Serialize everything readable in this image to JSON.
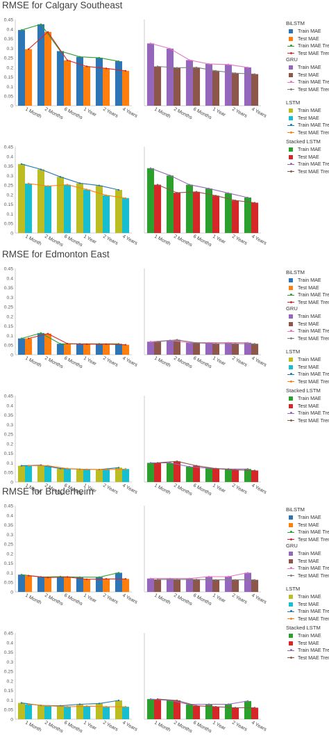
{
  "sections": [
    {
      "title": "RMSE for Calgary Southeast"
    },
    {
      "title": "RMSE for Edmonton East"
    },
    {
      "title": "RMSE for Bruderheim"
    }
  ],
  "legend": {
    "groups": [
      {
        "title": "BiLSTM",
        "items": [
          {
            "label": "Train MAE",
            "kind": "bar",
            "color": "#2e75b6"
          },
          {
            "label": "Test MAE",
            "kind": "bar",
            "color": "#ff7f0e"
          },
          {
            "label": "Train MAE Trenc",
            "kind": "line",
            "color": "#2ca02c"
          },
          {
            "label": "Test MAE Trend",
            "kind": "line",
            "color": "#d62728"
          }
        ]
      },
      {
        "title": "GRU",
        "items": [
          {
            "label": "Train MAE",
            "kind": "bar",
            "color": "#9467bd"
          },
          {
            "label": "Test MAE",
            "kind": "bar",
            "color": "#8c564b"
          },
          {
            "label": "Train MAE Trenc",
            "kind": "line",
            "color": "#e377c2"
          },
          {
            "label": "Test MAE Trend",
            "kind": "line",
            "color": "#7f7f7f"
          }
        ]
      },
      {
        "title": "LSTM",
        "items": [
          {
            "label": "Train MAE",
            "kind": "bar",
            "color": "#bcbd22"
          },
          {
            "label": "Test MAE",
            "kind": "bar",
            "color": "#17becf"
          },
          {
            "label": "Train MAE Trenc",
            "kind": "line",
            "color": "#1f77b4"
          },
          {
            "label": "Test MAE Trend",
            "kind": "line",
            "color": "#ff7f0e"
          }
        ]
      },
      {
        "title": "Stacked LSTM",
        "items": [
          {
            "label": "Train MAE",
            "kind": "bar",
            "color": "#2ca02c"
          },
          {
            "label": "Test MAE",
            "kind": "bar",
            "color": "#d62728"
          },
          {
            "label": "Train MAE Trenc",
            "kind": "line",
            "color": "#9467bd"
          },
          {
            "label": "Test MAE Trend",
            "kind": "line",
            "color": "#8c564b"
          }
        ]
      }
    ]
  },
  "chart_data": [
    {
      "type": "bar",
      "section": "Calgary Southeast",
      "model": "BiLSTM",
      "categories": [
        "1 Month",
        "2 Months",
        "6 Months",
        "1 Year",
        "2 Years",
        "4 Years"
      ],
      "ylim": [
        0,
        0.45
      ],
      "yticks": [
        "0",
        "0.05",
        "0.1",
        "0.15",
        "0.2",
        "0.25",
        "0.3",
        "0.35",
        "0.4",
        "0.45"
      ],
      "bar_colors": [
        "#2e75b6",
        "#ff7f0e"
      ],
      "line_colors": [
        "#2ca02c",
        "#d62728"
      ],
      "series": [
        {
          "name": "Train MAE",
          "values": [
            0.395,
            0.425,
            0.285,
            0.255,
            0.25,
            0.232
          ]
        },
        {
          "name": "Test MAE",
          "values": [
            0.295,
            0.385,
            0.237,
            0.205,
            0.195,
            0.182
          ]
        }
      ]
    },
    {
      "type": "bar",
      "section": "Calgary Southeast",
      "model": "GRU",
      "categories": [
        "1 Month",
        "2 Months",
        "6 Months",
        "1 Year",
        "2 Years",
        "4 Years"
      ],
      "ylim": [
        0,
        0.45
      ],
      "yticks": [],
      "bar_colors": [
        "#9467bd",
        "#8c564b"
      ],
      "line_colors": [
        "#e377c2",
        "#7f7f7f"
      ],
      "series": [
        {
          "name": "Train MAE",
          "values": [
            0.325,
            0.298,
            0.238,
            0.218,
            0.215,
            0.2
          ]
        },
        {
          "name": "Test MAE",
          "values": [
            0.205,
            0.198,
            0.2,
            0.182,
            0.17,
            0.165
          ]
        }
      ]
    },
    {
      "type": "bar",
      "section": "Calgary Southeast",
      "model": "LSTM",
      "categories": [
        "1 Month",
        "2 Months",
        "6 Months",
        "1 Year",
        "2 Years",
        "4 Years"
      ],
      "ylim": [
        0,
        0.45
      ],
      "yticks": [
        "0",
        "0.05",
        "0.1",
        "0.15",
        "0.2",
        "0.25",
        "0.3",
        "0.35",
        "0.4",
        "0.45"
      ],
      "bar_colors": [
        "#bcbd22",
        "#17becf"
      ],
      "line_colors": [
        "#1f77b4",
        "#ff7f0e"
      ],
      "series": [
        {
          "name": "Train MAE",
          "values": [
            0.36,
            0.332,
            0.293,
            0.26,
            0.248,
            0.225
          ]
        },
        {
          "name": "Test MAE",
          "values": [
            0.258,
            0.245,
            0.252,
            0.227,
            0.197,
            0.182
          ]
        }
      ]
    },
    {
      "type": "bar",
      "section": "Calgary Southeast",
      "model": "Stacked LSTM",
      "categories": [
        "1 Month",
        "2 Months",
        "6 Months",
        "1 Year",
        "2 Years",
        "4 Years"
      ],
      "ylim": [
        0,
        0.45
      ],
      "yticks": [],
      "bar_colors": [
        "#2ca02c",
        "#d62728"
      ],
      "line_colors": [
        "#9467bd",
        "#8c564b"
      ],
      "series": [
        {
          "name": "Train MAE",
          "values": [
            0.338,
            0.3,
            0.252,
            0.232,
            0.208,
            0.185
          ]
        },
        {
          "name": "Test MAE",
          "values": [
            0.252,
            0.21,
            0.215,
            0.195,
            0.17,
            0.158
          ]
        }
      ]
    },
    {
      "type": "bar",
      "section": "Edmonton East",
      "model": "BiLSTM",
      "categories": [
        "1 Month",
        "2 Months",
        "6 Months",
        "1 Year",
        "2 Years",
        "4 Years"
      ],
      "ylim": [
        0,
        0.45
      ],
      "yticks": [
        "0",
        "0.05",
        "0.1",
        "0.15",
        "0.2",
        "0.25",
        "0.3",
        "0.35",
        "0.4",
        "0.45"
      ],
      "bar_colors": [
        "#2e75b6",
        "#ff7f0e"
      ],
      "line_colors": [
        "#2ca02c",
        "#d62728"
      ],
      "series": [
        {
          "name": "Train MAE",
          "values": [
            0.085,
            0.113,
            0.057,
            0.057,
            0.057,
            0.057
          ]
        },
        {
          "name": "Test MAE",
          "values": [
            0.085,
            0.11,
            0.058,
            0.055,
            0.055,
            0.052
          ]
        }
      ]
    },
    {
      "type": "bar",
      "section": "Edmonton East",
      "model": "GRU",
      "categories": [
        "1 Month",
        "2 Months",
        "6 Months",
        "1 Year",
        "2 Years",
        "4 Years"
      ],
      "ylim": [
        0,
        0.45
      ],
      "yticks": [],
      "bar_colors": [
        "#9467bd",
        "#8c564b"
      ],
      "line_colors": [
        "#e377c2",
        "#7f7f7f"
      ],
      "series": [
        {
          "name": "Train MAE",
          "values": [
            0.068,
            0.075,
            0.063,
            0.063,
            0.063,
            0.063
          ]
        },
        {
          "name": "Test MAE",
          "values": [
            0.068,
            0.078,
            0.062,
            0.058,
            0.058,
            0.057
          ]
        }
      ]
    },
    {
      "type": "bar",
      "section": "Edmonton East",
      "model": "LSTM",
      "categories": [
        "1 Month",
        "2 Months",
        "6 Months",
        "1 Year",
        "2 Years",
        "4 Years"
      ],
      "ylim": [
        0,
        0.45
      ],
      "yticks": [
        "0",
        "0.05",
        "0.1",
        "0.15",
        "0.2",
        "0.25",
        "0.3",
        "0.35",
        "0.4",
        "0.45"
      ],
      "bar_colors": [
        "#bcbd22",
        "#17becf"
      ],
      "line_colors": [
        "#1f77b4",
        "#ff7f0e"
      ],
      "series": [
        {
          "name": "Train MAE",
          "values": [
            0.085,
            0.088,
            0.07,
            0.067,
            0.065,
            0.075
          ]
        },
        {
          "name": "Test MAE",
          "values": [
            0.085,
            0.085,
            0.07,
            0.066,
            0.065,
            0.068
          ]
        }
      ]
    },
    {
      "type": "bar",
      "section": "Edmonton East",
      "model": "Stacked LSTM",
      "categories": [
        "1 Month",
        "2 Months",
        "6 Months",
        "1 Year",
        "2 Years",
        "4 Years"
      ],
      "ylim": [
        0,
        0.45
      ],
      "yticks": [],
      "bar_colors": [
        "#2ca02c",
        "#d62728"
      ],
      "line_colors": [
        "#9467bd",
        "#8c564b"
      ],
      "series": [
        {
          "name": "Train MAE",
          "values": [
            0.1,
            0.1,
            0.08,
            0.072,
            0.068,
            0.068
          ]
        },
        {
          "name": "Test MAE",
          "values": [
            0.1,
            0.108,
            0.085,
            0.07,
            0.063,
            0.06
          ]
        }
      ]
    },
    {
      "type": "bar",
      "section": "Bruderheim",
      "model": "BiLSTM",
      "categories": [
        "1 Month",
        "2 Months",
        "6 Months",
        "1 Year",
        "2 Years",
        "4 Years"
      ],
      "ylim": [
        0,
        0.45
      ],
      "yticks": [
        "0",
        "0.05",
        "0.1",
        "0.15",
        "0.2",
        "0.25",
        "0.3",
        "0.35",
        "0.4",
        "0.45"
      ],
      "bar_colors": [
        "#2e75b6",
        "#ff7f0e"
      ],
      "line_colors": [
        "#2ca02c",
        "#d62728"
      ],
      "series": [
        {
          "name": "Train MAE",
          "values": [
            0.09,
            0.078,
            0.08,
            0.077,
            0.077,
            0.1
          ]
        },
        {
          "name": "Test MAE",
          "values": [
            0.085,
            0.075,
            0.078,
            0.066,
            0.068,
            0.068
          ]
        }
      ]
    },
    {
      "type": "bar",
      "section": "Bruderheim",
      "model": "GRU",
      "categories": [
        "1 Month",
        "2 Months",
        "6 Months",
        "1 Year",
        "2 Years",
        "4 Years"
      ],
      "ylim": [
        0,
        0.45
      ],
      "yticks": [],
      "bar_colors": [
        "#9467bd",
        "#8c564b"
      ],
      "line_colors": [
        "#e377c2",
        "#7f7f7f"
      ],
      "series": [
        {
          "name": "Train MAE",
          "values": [
            0.07,
            0.07,
            0.07,
            0.08,
            0.08,
            0.1
          ]
        },
        {
          "name": "Test MAE",
          "values": [
            0.065,
            0.065,
            0.065,
            0.063,
            0.063,
            0.063
          ]
        }
      ]
    },
    {
      "type": "bar",
      "section": "Bruderheim",
      "model": "LSTM",
      "categories": [
        "1 Month",
        "2 Months",
        "6 Months",
        "1 Year",
        "2 Years",
        "4 Years"
      ],
      "ylim": [
        0,
        0.45
      ],
      "yticks": [
        "0",
        "0.05",
        "0.1",
        "0.15",
        "0.2",
        "0.25",
        "0.3",
        "0.35",
        "0.4",
        "0.45"
      ],
      "bar_colors": [
        "#bcbd22",
        "#17becf"
      ],
      "line_colors": [
        "#1f77b4",
        "#ff7f0e"
      ],
      "series": [
        {
          "name": "Train MAE",
          "values": [
            0.085,
            0.072,
            0.07,
            0.078,
            0.082,
            0.098
          ]
        },
        {
          "name": "Test MAE",
          "values": [
            0.078,
            0.07,
            0.065,
            0.068,
            0.065,
            0.065
          ]
        }
      ]
    },
    {
      "type": "bar",
      "section": "Bruderheim",
      "model": "Stacked LSTM",
      "categories": [
        "1 Month",
        "2 Months",
        "6 Months",
        "1 Year",
        "2 Years",
        "4 Years"
      ],
      "ylim": [
        0,
        0.45
      ],
      "yticks": [],
      "bar_colors": [
        "#2ca02c",
        "#d62728"
      ],
      "line_colors": [
        "#9467bd",
        "#8c564b"
      ],
      "series": [
        {
          "name": "Train MAE",
          "values": [
            0.105,
            0.098,
            0.077,
            0.078,
            0.078,
            0.095
          ]
        },
        {
          "name": "Test MAE",
          "values": [
            0.105,
            0.098,
            0.07,
            0.065,
            0.06,
            0.06
          ]
        }
      ]
    }
  ]
}
